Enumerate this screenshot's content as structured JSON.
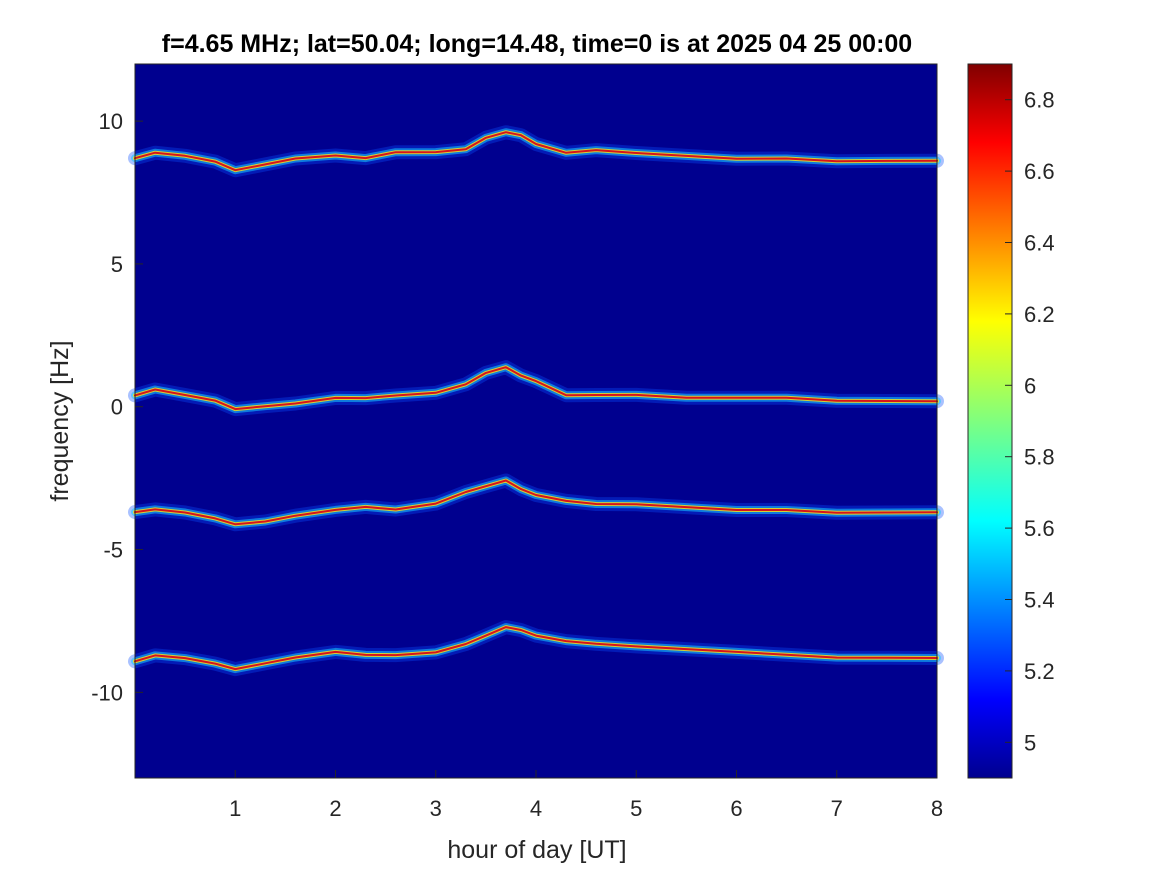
{
  "chart_data": {
    "type": "heatmap",
    "title": "f=4.65 MHz;  lat=50.04; long=14.48, time=0 is at 2025 04 25 00:00",
    "xlabel": "hour of day [UT]",
    "ylabel": "frequency [Hz]",
    "xlim": [
      0,
      8
    ],
    "ylim": [
      -13,
      12
    ],
    "x_ticks": [
      1,
      2,
      3,
      4,
      5,
      6,
      7,
      8
    ],
    "x_tick_labels": [
      "1",
      "2",
      "3",
      "4",
      "5",
      "6",
      "7",
      "8"
    ],
    "y_ticks": [
      10,
      5,
      0,
      -5,
      -10
    ],
    "y_tick_labels": [
      "10",
      "5",
      "0",
      "-5",
      "-10"
    ],
    "colorbar": {
      "range": [
        4.9,
        6.9
      ],
      "ticks": [
        6.8,
        6.6,
        6.4,
        6.2,
        6,
        5.8,
        5.6,
        5.4,
        5.2,
        5
      ],
      "tick_labels": [
        "6.8",
        "6.6",
        "6.4",
        "6.2",
        "6",
        "5.8",
        "5.6",
        "5.4",
        "5.2",
        "5"
      ],
      "colormap": "jet"
    },
    "background_color": "#00008f",
    "series": [
      {
        "x": [
          0,
          0.2,
          0.5,
          0.8,
          1.0,
          1.3,
          1.6,
          2.0,
          2.3,
          2.6,
          3.0,
          3.3,
          3.5,
          3.7,
          3.85,
          4.0,
          4.3,
          4.6,
          5.0,
          5.5,
          6.0,
          6.5,
          7.0,
          7.5,
          8.0
        ],
        "y": [
          8.7,
          8.9,
          8.8,
          8.6,
          8.3,
          8.5,
          8.7,
          8.8,
          8.7,
          8.9,
          8.9,
          9.0,
          9.4,
          9.6,
          9.5,
          9.2,
          8.9,
          9.0,
          8.9,
          8.8,
          8.7,
          8.7,
          8.6,
          8.6,
          8.6
        ]
      },
      {
        "x": [
          0,
          0.2,
          0.5,
          0.8,
          1.0,
          1.3,
          1.6,
          2.0,
          2.3,
          2.6,
          3.0,
          3.3,
          3.5,
          3.7,
          3.85,
          4.0,
          4.3,
          4.6,
          5.0,
          5.5,
          6.0,
          6.5,
          7.0,
          7.5,
          8.0
        ],
        "y": [
          0.4,
          0.6,
          0.4,
          0.2,
          -0.1,
          0.0,
          0.1,
          0.3,
          0.3,
          0.4,
          0.5,
          0.8,
          1.2,
          1.4,
          1.1,
          0.9,
          0.4,
          0.4,
          0.4,
          0.3,
          0.3,
          0.3,
          0.2,
          0.2,
          0.2
        ]
      },
      {
        "x": [
          0,
          0.2,
          0.5,
          0.8,
          1.0,
          1.3,
          1.6,
          2.0,
          2.3,
          2.6,
          3.0,
          3.3,
          3.5,
          3.7,
          3.85,
          4.0,
          4.3,
          4.6,
          5.0,
          5.5,
          6.0,
          6.5,
          7.0,
          7.5,
          8.0
        ],
        "y": [
          -3.7,
          -3.6,
          -3.7,
          -3.9,
          -4.1,
          -4.0,
          -3.8,
          -3.6,
          -3.5,
          -3.6,
          -3.4,
          -3.0,
          -2.8,
          -2.6,
          -2.9,
          -3.1,
          -3.3,
          -3.4,
          -3.4,
          -3.5,
          -3.6,
          -3.6,
          -3.7,
          -3.7,
          -3.7
        ]
      },
      {
        "x": [
          0,
          0.2,
          0.5,
          0.8,
          1.0,
          1.3,
          1.6,
          2.0,
          2.3,
          2.6,
          3.0,
          3.3,
          3.5,
          3.7,
          3.85,
          4.0,
          4.3,
          4.6,
          5.0,
          5.5,
          6.0,
          6.5,
          7.0,
          7.5,
          8.0
        ],
        "y": [
          -8.9,
          -8.7,
          -8.8,
          -9.0,
          -9.2,
          -9.0,
          -8.8,
          -8.6,
          -8.7,
          -8.7,
          -8.6,
          -8.3,
          -8.0,
          -7.7,
          -7.8,
          -8.0,
          -8.2,
          -8.3,
          -8.4,
          -8.5,
          -8.6,
          -8.7,
          -8.8,
          -8.8,
          -8.8
        ]
      }
    ]
  }
}
